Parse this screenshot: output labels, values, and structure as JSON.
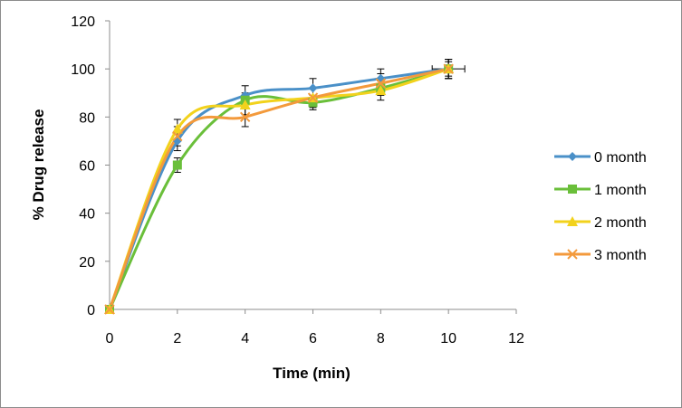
{
  "chart_data": {
    "type": "line",
    "title": "",
    "xlabel": "Time  (min)",
    "ylabel": "% Drug release",
    "xlim": [
      0,
      12
    ],
    "ylim": [
      0,
      120
    ],
    "xticks": [
      "0",
      "2",
      "4",
      "6",
      "8",
      "10",
      "12"
    ],
    "yticks": [
      "0",
      "20",
      "40",
      "60",
      "80",
      "100",
      "120"
    ],
    "grid": false,
    "smooth": true,
    "legend_position": "right",
    "series": [
      {
        "name": "0 month",
        "color": "#4a90c8",
        "marker": "diamond",
        "x": [
          0,
          2,
          4,
          6,
          8,
          10
        ],
        "y": [
          0,
          70,
          89,
          92,
          96,
          100
        ],
        "err": [
          0,
          4,
          4,
          4,
          4,
          4
        ]
      },
      {
        "name": "1 month",
        "color": "#6abf3a",
        "marker": "square",
        "x": [
          0,
          2,
          4,
          6,
          8,
          10
        ],
        "y": [
          0,
          60,
          87,
          86,
          92,
          100
        ],
        "err": [
          0,
          3,
          3,
          3,
          3,
          3
        ]
      },
      {
        "name": "2 month",
        "color": "#f2d21c",
        "marker": "triangle",
        "x": [
          0,
          2,
          4,
          6,
          8,
          10
        ],
        "y": [
          0,
          75,
          85,
          88,
          91,
          100
        ],
        "err": [
          0,
          4,
          4,
          4,
          4,
          4
        ]
      },
      {
        "name": "3 month",
        "color": "#f39a3c",
        "marker": "x",
        "x": [
          0,
          2,
          4,
          6,
          8,
          10
        ],
        "y": [
          0,
          72,
          80,
          88,
          94,
          100
        ],
        "err": [
          0,
          4,
          4,
          4,
          4,
          4
        ]
      }
    ]
  }
}
